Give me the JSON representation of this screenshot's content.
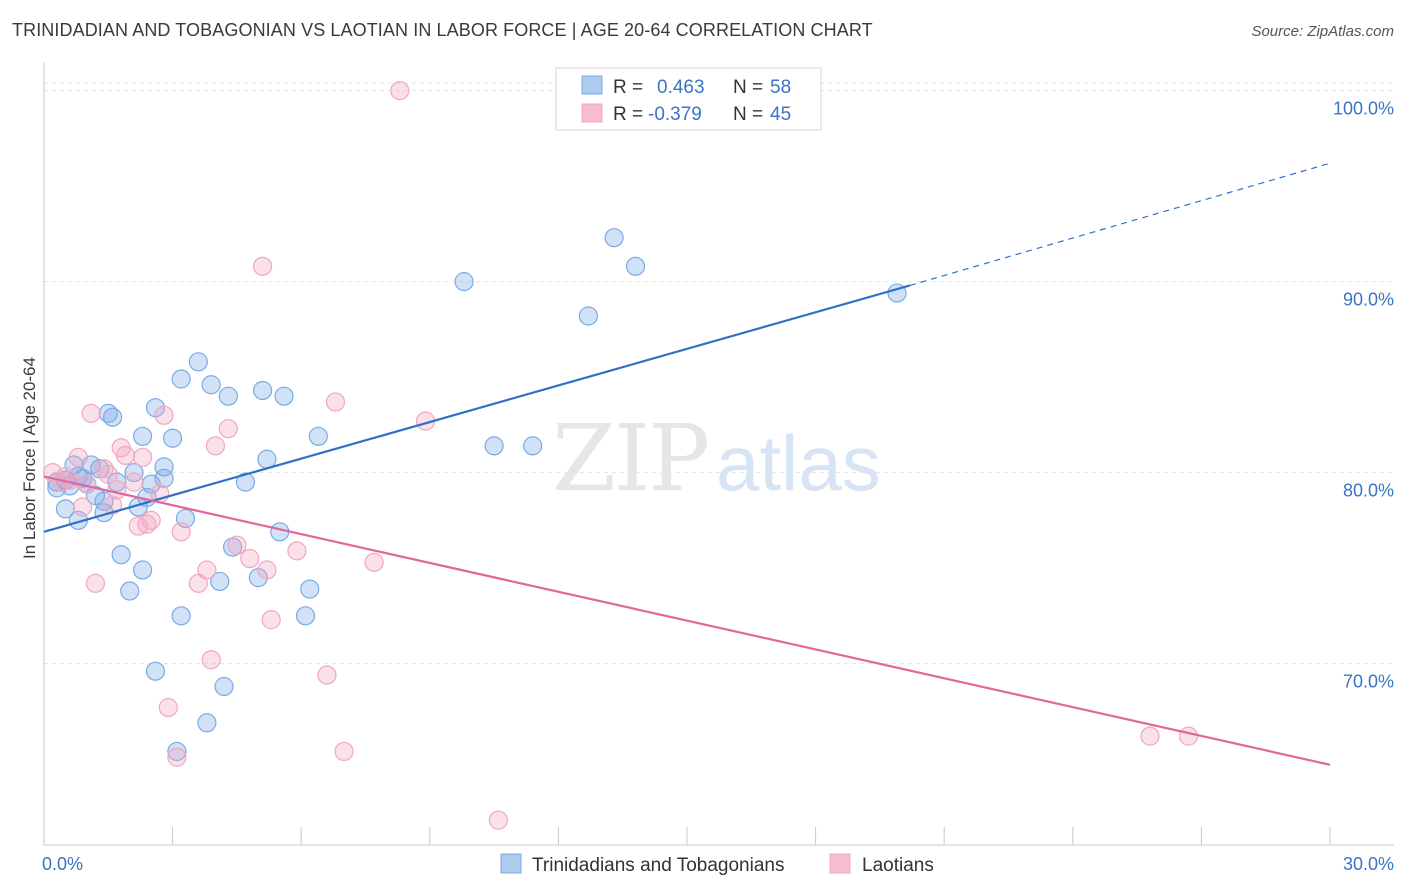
{
  "title": "TRINIDADIAN AND TOBAGONIAN VS LAOTIAN IN LABOR FORCE | AGE 20-64 CORRELATION CHART",
  "source": "Source: ZipAtlas.com",
  "watermark": {
    "zip": "ZIP",
    "atlas": "atlas"
  },
  "legend": {
    "rows": [
      {
        "r_label": "R =",
        "r_value": "0.463",
        "n_label": "N =",
        "n_value": "58",
        "color": "#aecbf0"
      },
      {
        "r_label": "R =",
        "r_value": "-0.379",
        "n_label": "N =",
        "n_value": "45",
        "color": "#f7bcd0"
      }
    ]
  },
  "chart_data": {
    "type": "scatter",
    "title": "TRINIDADIAN AND TOBAGONIAN VS LAOTIAN IN LABOR FORCE | AGE 20-64 CORRELATION CHART",
    "xlabel": "",
    "ylabel": "In Labor Force | Age 20-64",
    "xlim": [
      0,
      30
    ],
    "ylim": [
      60.5,
      101.5
    ],
    "x_tick_labels": [
      "0.0%",
      "30.0%"
    ],
    "y_ticks": [
      70,
      80,
      90,
      100
    ],
    "y_tick_labels": [
      "70.0%",
      "80.0%",
      "90.0%",
      "100.0%"
    ],
    "grid": true,
    "series": [
      {
        "name": "Trinidadians and Tobagonians",
        "color": "#7aaae6",
        "line_color": "#2e72c8",
        "trend": {
          "x0": 0,
          "y0": 76.9,
          "x1": 20.2,
          "y1": 89.8,
          "x_dash_end": 30,
          "y_dash_end": 96.2
        },
        "points": [
          [
            0.3,
            79.2
          ],
          [
            0.5,
            79.6
          ],
          [
            0.5,
            78.1
          ],
          [
            0.7,
            80.4
          ],
          [
            0.8,
            79.8
          ],
          [
            0.8,
            77.5
          ],
          [
            1.0,
            79.4
          ],
          [
            1.1,
            80.4
          ],
          [
            1.2,
            78.8
          ],
          [
            1.4,
            78.5
          ],
          [
            1.4,
            77.9
          ],
          [
            1.5,
            83.1
          ],
          [
            1.6,
            82.9
          ],
          [
            1.7,
            79.5
          ],
          [
            1.8,
            75.7
          ],
          [
            2.0,
            73.8
          ],
          [
            2.1,
            80.0
          ],
          [
            2.2,
            78.2
          ],
          [
            2.3,
            74.9
          ],
          [
            2.3,
            81.9
          ],
          [
            2.5,
            79.4
          ],
          [
            2.6,
            83.4
          ],
          [
            2.6,
            69.6
          ],
          [
            2.8,
            80.3
          ],
          [
            2.8,
            79.7
          ],
          [
            3.0,
            81.8
          ],
          [
            3.1,
            65.4
          ],
          [
            3.2,
            72.5
          ],
          [
            3.2,
            84.9
          ],
          [
            3.3,
            77.6
          ],
          [
            3.6,
            85.8
          ],
          [
            3.8,
            66.9
          ],
          [
            3.9,
            84.6
          ],
          [
            4.1,
            74.3
          ],
          [
            4.2,
            68.8
          ],
          [
            4.3,
            84.0
          ],
          [
            4.4,
            76.1
          ],
          [
            4.7,
            79.5
          ],
          [
            5.0,
            74.5
          ],
          [
            5.1,
            84.3
          ],
          [
            5.2,
            80.7
          ],
          [
            5.5,
            76.9
          ],
          [
            5.6,
            84.0
          ],
          [
            6.1,
            72.5
          ],
          [
            6.2,
            73.9
          ],
          [
            6.4,
            81.9
          ],
          [
            9.8,
            90.0
          ],
          [
            10.5,
            81.4
          ],
          [
            11.4,
            81.4
          ],
          [
            12.7,
            88.2
          ],
          [
            13.3,
            92.3
          ],
          [
            13.8,
            90.8
          ],
          [
            19.9,
            89.4
          ],
          [
            0.3,
            79.5
          ],
          [
            0.6,
            79.3
          ],
          [
            0.9,
            79.7
          ],
          [
            1.3,
            80.2
          ],
          [
            2.4,
            78.7
          ]
        ]
      },
      {
        "name": "Laotians",
        "color": "#f2a6c0",
        "line_color": "#e0679a",
        "trend": {
          "x0": 0,
          "y0": 79.8,
          "x1": 30,
          "y1": 64.7
        },
        "points": [
          [
            0.2,
            80.0
          ],
          [
            0.4,
            79.5
          ],
          [
            0.6,
            79.6
          ],
          [
            0.8,
            80.8
          ],
          [
            0.9,
            78.2
          ],
          [
            1.0,
            79.4
          ],
          [
            1.1,
            83.1
          ],
          [
            1.2,
            74.2
          ],
          [
            1.4,
            80.2
          ],
          [
            1.6,
            78.3
          ],
          [
            1.7,
            79.1
          ],
          [
            1.8,
            81.3
          ],
          [
            1.9,
            80.9
          ],
          [
            2.1,
            79.5
          ],
          [
            2.2,
            77.2
          ],
          [
            2.3,
            80.8
          ],
          [
            2.4,
            77.3
          ],
          [
            2.5,
            77.5
          ],
          [
            2.7,
            78.9
          ],
          [
            2.8,
            83.0
          ],
          [
            2.9,
            67.7
          ],
          [
            3.1,
            65.1
          ],
          [
            3.2,
            76.9
          ],
          [
            3.6,
            74.2
          ],
          [
            3.8,
            74.9
          ],
          [
            3.9,
            70.2
          ],
          [
            4.0,
            81.4
          ],
          [
            4.3,
            82.3
          ],
          [
            4.5,
            76.2
          ],
          [
            4.8,
            75.5
          ],
          [
            5.1,
            90.8
          ],
          [
            5.2,
            74.9
          ],
          [
            5.3,
            72.3
          ],
          [
            5.9,
            75.9
          ],
          [
            6.6,
            69.4
          ],
          [
            6.8,
            83.7
          ],
          [
            7.0,
            65.4
          ],
          [
            7.7,
            75.3
          ],
          [
            8.3,
            100.0
          ],
          [
            8.9,
            82.7
          ],
          [
            10.6,
            61.8
          ],
          [
            25.8,
            66.2
          ],
          [
            26.7,
            66.2
          ],
          [
            0.5,
            79.8
          ],
          [
            1.5,
            79.9
          ]
        ]
      }
    ]
  }
}
